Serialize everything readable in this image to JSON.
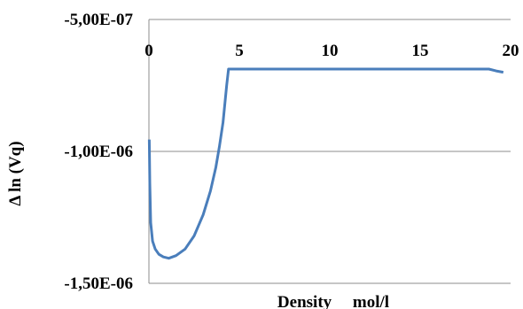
{
  "chart_data": {
    "type": "line",
    "title": "",
    "xlabel": "Density     mol/l",
    "ylabel": "Δ ln (Vq)",
    "xlim": [
      0,
      20
    ],
    "ylim": [
      -1.5e-06,
      -5e-07
    ],
    "x_ticks": [
      0,
      5,
      10,
      15,
      20
    ],
    "x_tick_labels": [
      "0",
      "5",
      "10",
      "15",
      "20"
    ],
    "y_ticks": [
      -5e-07,
      -1e-06,
      -1.5e-06
    ],
    "y_tick_labels": [
      "-5,00E-07",
      "-1,00E-06",
      "-1,50E-06"
    ],
    "x_axis_position": "top",
    "grid": {
      "horizontal": true,
      "vertical": false
    },
    "legend": "none",
    "series": [
      {
        "color": "#4a7ebb",
        "points": [
          [
            0.02,
            -9.55e-07
          ],
          [
            0.05,
            -1.12e-06
          ],
          [
            0.1,
            -1.27e-06
          ],
          [
            0.2,
            -1.34e-06
          ],
          [
            0.35,
            -1.37e-06
          ],
          [
            0.55,
            -1.39e-06
          ],
          [
            0.8,
            -1.4e-06
          ],
          [
            1.1,
            -1.405e-06
          ],
          [
            1.5,
            -1.395e-06
          ],
          [
            2.0,
            -1.37e-06
          ],
          [
            2.5,
            -1.32e-06
          ],
          [
            3.0,
            -1.24e-06
          ],
          [
            3.4,
            -1.15e-06
          ],
          [
            3.7,
            -1.06e-06
          ],
          [
            3.9,
            -9.8e-07
          ],
          [
            4.1,
            -8.9e-07
          ],
          [
            4.3,
            -7.5e-07
          ],
          [
            4.4,
            -6.88e-07
          ],
          [
            5.0,
            -6.88e-07
          ],
          [
            10.0,
            -6.88e-07
          ],
          [
            15.0,
            -6.88e-07
          ],
          [
            18.8,
            -6.88e-07
          ],
          [
            19.2,
            -6.95e-07
          ],
          [
            19.6,
            -7e-07
          ]
        ]
      }
    ]
  }
}
